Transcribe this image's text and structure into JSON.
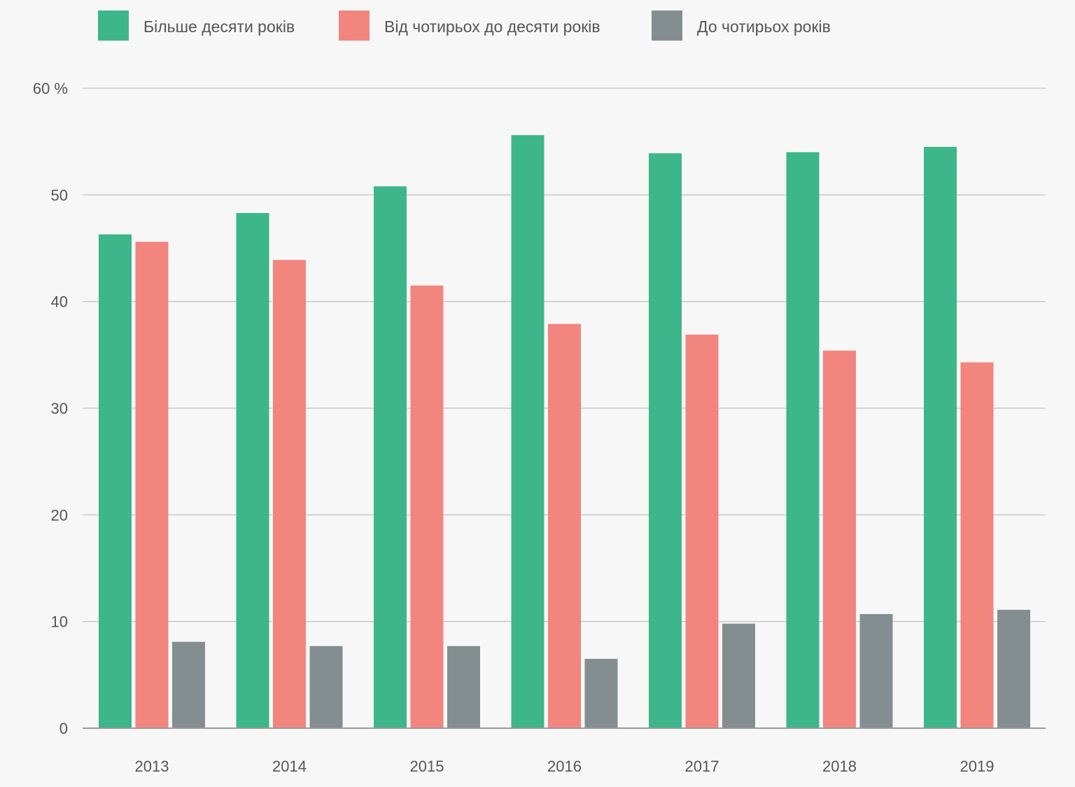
{
  "chart_data": {
    "type": "bar",
    "categories": [
      "2013",
      "2014",
      "2015",
      "2016",
      "2017",
      "2018",
      "2019"
    ],
    "series": [
      {
        "name": "Більше десяти років",
        "color": "#3cb68a",
        "values": [
          46.3,
          48.3,
          50.8,
          55.6,
          53.9,
          54.0,
          54.5
        ]
      },
      {
        "name": "Від чотирьох до десяти років",
        "color": "#f2857e",
        "values": [
          45.6,
          43.9,
          41.5,
          37.9,
          36.9,
          35.4,
          34.3
        ]
      },
      {
        "name": "До чотирьох років",
        "color": "#848e91",
        "values": [
          8.1,
          7.7,
          7.7,
          6.5,
          9.8,
          10.7,
          11.1
        ]
      }
    ],
    "yticks": [
      {
        "value": 0,
        "label": "0"
      },
      {
        "value": 10,
        "label": "10"
      },
      {
        "value": 20,
        "label": "20"
      },
      {
        "value": 30,
        "label": "30"
      },
      {
        "value": 40,
        "label": "40"
      },
      {
        "value": 50,
        "label": "50"
      },
      {
        "value": 60,
        "label": "60 %"
      }
    ],
    "ylim": [
      0,
      60
    ],
    "grid": true,
    "legend_position": "top-left",
    "title": "",
    "xlabel": "",
    "ylabel": ""
  },
  "colors": {
    "background": "#f7f7f7",
    "gridline": "#c8c8c8",
    "axis": "#9a9a9a",
    "text": "#555555"
  }
}
